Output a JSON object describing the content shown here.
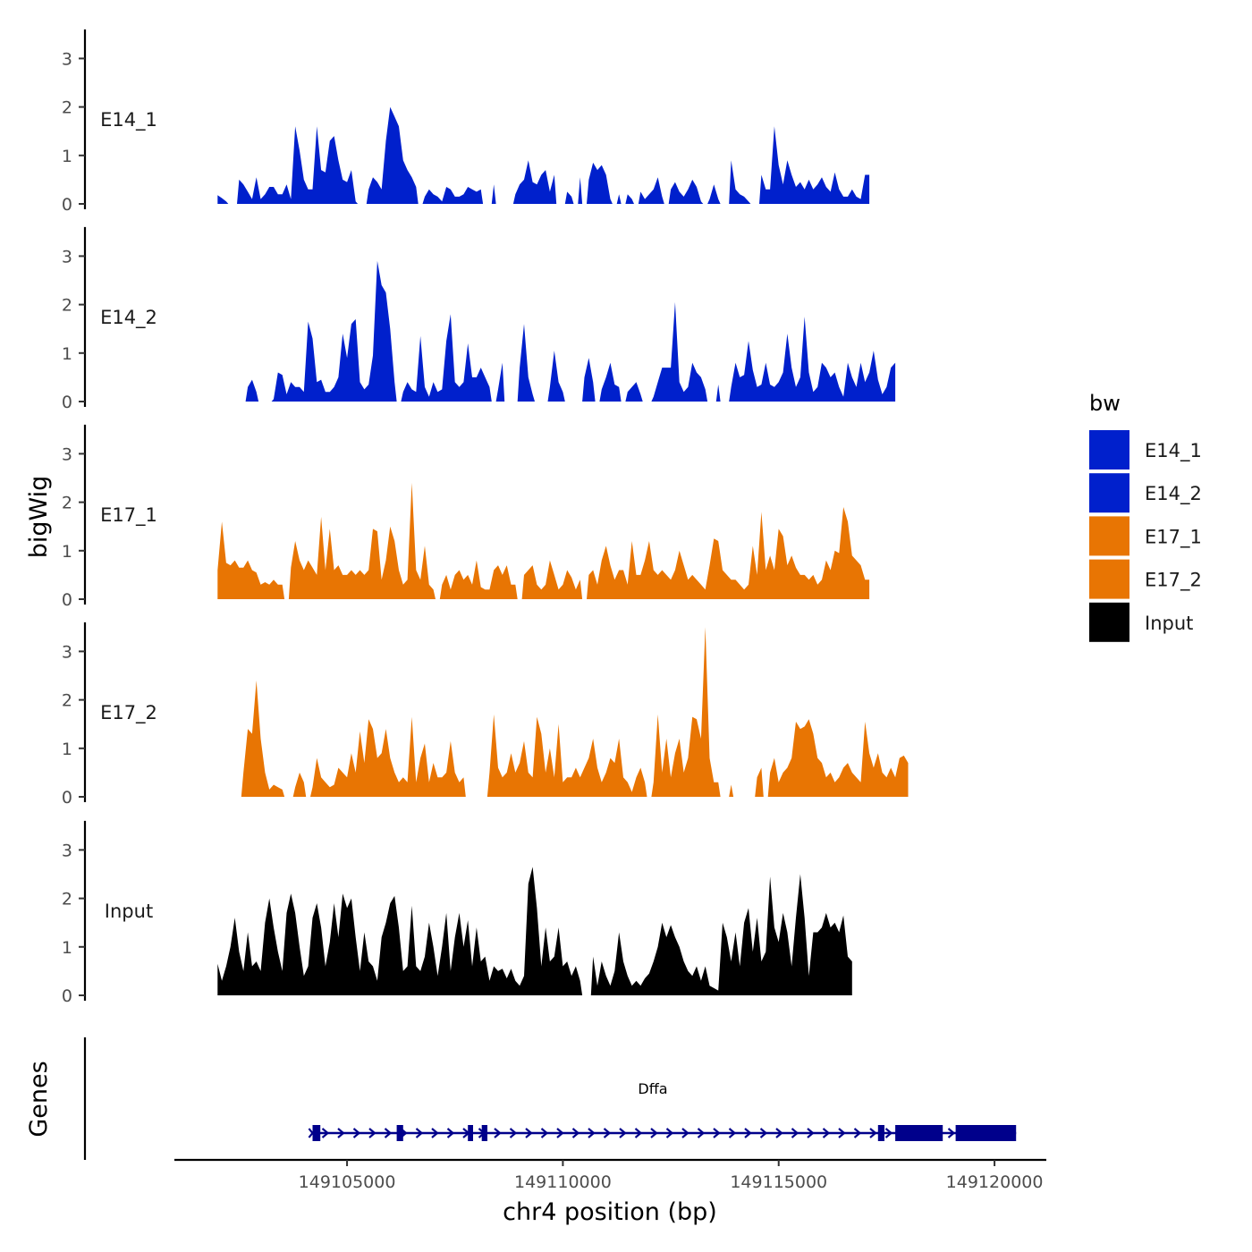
{
  "chart_data": {
    "type": "area",
    "y_title": "bigWig",
    "genes_title": "Genes",
    "x_title": "chr4 position (bp)",
    "xlim": [
      149101000,
      149121200
    ],
    "x_ticks": [
      149105000,
      149110000,
      149115000,
      149120000
    ],
    "x_tick_labels": [
      "149105000",
      "149110000",
      "149115000",
      "149120000"
    ],
    "ylim": [
      0,
      3.6
    ],
    "y_ticks": [
      0,
      1,
      2,
      3
    ],
    "y_tick_labels": [
      "0",
      "1",
      "2",
      "3"
    ],
    "legend": {
      "title": "bw",
      "entries": [
        {
          "name": "E14_1",
          "color": "#0020CC"
        },
        {
          "name": "E14_2",
          "color": "#0020CC"
        },
        {
          "name": "E17_1",
          "color": "#E87503"
        },
        {
          "name": "E17_2",
          "color": "#E87503"
        },
        {
          "name": "Input",
          "color": "#000000"
        }
      ]
    },
    "series": [
      {
        "name": "E14_1",
        "color": "#0020CC",
        "start": 149102000,
        "step": 100,
        "values": [
          0.18,
          0.12,
          0.05,
          0,
          0,
          0.5,
          0.4,
          0.25,
          0.1,
          0.55,
          0.1,
          0.2,
          0.35,
          0.35,
          0.2,
          0.2,
          0.4,
          0.1,
          1.6,
          1.1,
          0.5,
          0.3,
          0.3,
          1.6,
          0.7,
          0.65,
          1.3,
          1.4,
          0.9,
          0.5,
          0.45,
          0.7,
          0.05,
          0,
          0,
          0.3,
          0.55,
          0.45,
          0.3,
          1.3,
          2.0,
          1.8,
          1.6,
          0.9,
          0.7,
          0.55,
          0.35,
          0,
          0.15,
          0.3,
          0.2,
          0.15,
          0.05,
          0.35,
          0.3,
          0.15,
          0.15,
          0.2,
          0.35,
          0.3,
          0.25,
          0.3,
          0,
          0,
          0.4,
          0,
          0,
          0,
          0,
          0.2,
          0.4,
          0.5,
          0.9,
          0.45,
          0.4,
          0.6,
          0.7,
          0.25,
          0.6,
          0,
          0,
          0.25,
          0.15,
          0,
          0.55,
          0,
          0.5,
          0.85,
          0.7,
          0.8,
          0.6,
          0.1,
          0,
          0.2,
          0,
          0.2,
          0.1,
          0,
          0.25,
          0.1,
          0.2,
          0.3,
          0.55,
          0.15,
          0,
          0.3,
          0.45,
          0.25,
          0.15,
          0.3,
          0.5,
          0.35,
          0.05,
          0,
          0.1,
          0.4,
          0.1,
          0,
          0,
          0.9,
          0.3,
          0.2,
          0.15,
          0.05,
          0,
          0,
          0.6,
          0.3,
          0.3,
          1.6,
          0.8,
          0.4,
          0.9,
          0.6,
          0.35,
          0.45,
          0.3,
          0.5,
          0.3,
          0.4,
          0.55,
          0.35,
          0.25,
          0.65,
          0.3,
          0.15,
          0.15,
          0.3,
          0.15,
          0.1,
          0.6,
          0.6
        ]
      },
      {
        "name": "E14_2",
        "color": "#0020CC",
        "start": 149102000,
        "step": 100,
        "values": [
          0,
          0,
          0,
          0,
          0,
          0,
          0,
          0.3,
          0.45,
          0.2,
          0,
          0,
          0,
          0.05,
          0.6,
          0.55,
          0.15,
          0.4,
          0.3,
          0.3,
          0.2,
          1.65,
          1.3,
          0.4,
          0.45,
          0.2,
          0.2,
          0.3,
          0.5,
          1.4,
          0.9,
          1.6,
          1.7,
          0.4,
          0.25,
          0.35,
          0.95,
          2.9,
          2.4,
          2.25,
          1.5,
          0.4,
          0,
          0.2,
          0.4,
          0.25,
          0.2,
          1.35,
          0.3,
          0.1,
          0.4,
          0.2,
          0.25,
          1.25,
          1.8,
          0.4,
          0.3,
          0.4,
          1.2,
          0.5,
          0.5,
          0.7,
          0.5,
          0.3,
          0,
          0.25,
          0.8,
          0,
          0,
          0,
          0.7,
          1.6,
          0.5,
          0.15,
          0,
          0,
          0,
          0.3,
          1.05,
          0.4,
          0.2,
          0,
          0,
          0,
          0,
          0.5,
          0.9,
          0.4,
          0,
          0.25,
          0.5,
          0.8,
          0.35,
          0.3,
          0,
          0.2,
          0.3,
          0.4,
          0.15,
          0,
          0,
          0.1,
          0.4,
          0.7,
          0.7,
          0.7,
          2.05,
          0.4,
          0.2,
          0.3,
          0.8,
          0.6,
          0.5,
          0.25,
          0,
          0,
          0.35,
          0,
          0,
          0.3,
          0.8,
          0.5,
          0.55,
          1.25,
          0.65,
          0.3,
          0.35,
          0.8,
          0.35,
          0.3,
          0.4,
          0.6,
          1.4,
          0.7,
          0.3,
          0.5,
          1.75,
          0.6,
          0.2,
          0.3,
          0.8,
          0.7,
          0.5,
          0.6,
          0.3,
          0.1,
          0.8,
          0.5,
          0.3,
          0.8,
          0.4,
          0.6,
          1.05,
          0.45,
          0.15,
          0.3,
          0.7,
          0.8
        ]
      },
      {
        "name": "E17_1",
        "color": "#E87503",
        "start": 149102000,
        "step": 100,
        "values": [
          0.6,
          1.6,
          0.75,
          0.7,
          0.8,
          0.65,
          0.65,
          0.8,
          0.6,
          0.55,
          0.3,
          0.35,
          0.3,
          0.4,
          0.3,
          0.3,
          0,
          0.65,
          1.2,
          0.8,
          0.6,
          0.8,
          0.65,
          0.5,
          1.7,
          0.6,
          1.45,
          0.6,
          0.7,
          0.5,
          0.5,
          0.6,
          0.5,
          0.6,
          0.5,
          0.6,
          1.45,
          1.4,
          0.4,
          0.8,
          1.5,
          1.2,
          0.6,
          0.3,
          0.4,
          2.4,
          0.6,
          0.4,
          1.1,
          0.3,
          0.2,
          0,
          0.3,
          0.5,
          0.2,
          0.5,
          0.6,
          0.4,
          0.5,
          0.3,
          0.8,
          0.25,
          0.2,
          0.2,
          0.6,
          0.7,
          0.5,
          0.7,
          0.3,
          0.3,
          0,
          0.5,
          0.6,
          0.7,
          0.3,
          0.2,
          0.3,
          0.8,
          0.5,
          0.2,
          0.3,
          0.6,
          0.45,
          0.2,
          0.4,
          0,
          0.5,
          0.6,
          0.3,
          0.8,
          1.1,
          0.7,
          0.4,
          0.6,
          0.6,
          0.3,
          1.2,
          0.5,
          0.5,
          0.8,
          1.2,
          0.6,
          0.5,
          0.6,
          0.5,
          0.4,
          0.6,
          1.0,
          0.7,
          0.4,
          0.5,
          0.4,
          0.3,
          0.2,
          0.7,
          1.25,
          1.2,
          0.6,
          0.5,
          0.4,
          0.4,
          0.3,
          0.2,
          0.3,
          1.1,
          0.5,
          1.8,
          0.6,
          0.9,
          0.6,
          1.45,
          1.3,
          0.7,
          0.9,
          0.65,
          0.5,
          0.5,
          0.4,
          0.5,
          0.3,
          0.4,
          0.8,
          0.6,
          1.0,
          0.95,
          1.9,
          1.6,
          0.9,
          0.8,
          0.7,
          0.4,
          0.4
        ]
      },
      {
        "name": "E17_2",
        "color": "#E87503",
        "start": 149102000,
        "step": 100,
        "values": [
          0,
          0,
          0,
          0,
          0,
          0,
          0.5,
          1.4,
          1.3,
          2.4,
          1.2,
          0.5,
          0.15,
          0.25,
          0.2,
          0.15,
          0,
          0,
          0.2,
          0.5,
          0.3,
          0,
          0.2,
          0.8,
          0.4,
          0.3,
          0.2,
          0.25,
          0.6,
          0.5,
          0.4,
          0.9,
          0.5,
          1.35,
          0.7,
          1.6,
          1.4,
          0.8,
          0.9,
          1.4,
          0.8,
          0.5,
          0.3,
          0.4,
          0.3,
          1.65,
          0.3,
          0.8,
          1.1,
          0.3,
          0.7,
          0.4,
          0.4,
          0.5,
          1.15,
          0.5,
          0.3,
          0.4,
          0,
          0,
          0,
          0,
          0,
          0.5,
          1.7,
          0.6,
          0.4,
          0.5,
          0.9,
          0.5,
          0.7,
          1.15,
          0.5,
          0.4,
          1.65,
          1.3,
          0.5,
          1.0,
          0.4,
          1.5,
          0.3,
          0.4,
          0.4,
          0.6,
          0.4,
          0.6,
          0.8,
          1.2,
          0.6,
          0.3,
          0.5,
          0.8,
          0.7,
          1.2,
          0.4,
          0.3,
          0.1,
          0.4,
          0.6,
          0.3,
          0,
          0.3,
          1.7,
          0.5,
          1.2,
          0.4,
          0.9,
          1.2,
          0.5,
          0.8,
          1.65,
          1.6,
          1.2,
          3.5,
          0.8,
          0.3,
          0.3,
          0,
          0,
          0.25,
          0,
          0,
          0,
          0,
          0,
          0.4,
          0.6,
          0,
          0.5,
          0.8,
          0.3,
          0.5,
          0.6,
          0.8,
          1.55,
          1.4,
          1.45,
          1.6,
          1.3,
          0.8,
          0.7,
          0.4,
          0.5,
          0.3,
          0.4,
          0.6,
          0.7,
          0.5,
          0.4,
          0.3,
          1.55,
          0.9,
          0.6,
          0.9,
          0.5,
          0.4,
          0.6,
          0.4,
          0.8,
          0.85,
          0.7
        ]
      },
      {
        "name": "Input",
        "color": "#000000",
        "start": 149102000,
        "step": 100,
        "values": [
          0.65,
          0.3,
          0.6,
          1.0,
          1.6,
          0.9,
          0.5,
          1.3,
          0.6,
          0.7,
          0.5,
          1.5,
          2.0,
          1.4,
          0.9,
          0.5,
          1.7,
          2.1,
          1.7,
          1.0,
          0.4,
          0.6,
          1.6,
          1.9,
          1.4,
          0.6,
          1.1,
          1.9,
          1.2,
          2.1,
          1.8,
          2.0,
          1.2,
          0.5,
          1.3,
          0.7,
          0.6,
          0.3,
          1.2,
          1.5,
          1.9,
          2.05,
          1.4,
          0.5,
          0.6,
          1.85,
          0.6,
          0.5,
          0.8,
          1.5,
          1.0,
          0.4,
          1.0,
          1.7,
          0.5,
          1.2,
          1.7,
          1.0,
          1.55,
          0.6,
          1.4,
          0.7,
          0.8,
          0.3,
          0.6,
          0.5,
          0.55,
          0.35,
          0.55,
          0.3,
          0.2,
          0.4,
          2.3,
          2.65,
          1.8,
          0.6,
          1.4,
          0.7,
          0.8,
          1.4,
          0.6,
          0.7,
          0.4,
          0.6,
          0.3,
          0,
          0,
          0.8,
          0.2,
          0.7,
          0.4,
          0.2,
          0.5,
          1.3,
          0.7,
          0.4,
          0.2,
          0.3,
          0.2,
          0.35,
          0.45,
          0.7,
          1.0,
          1.5,
          1.2,
          1.45,
          1.2,
          1.0,
          0.7,
          0.5,
          0.4,
          0.6,
          0.3,
          0.6,
          0.2,
          0.15,
          0.1,
          1.5,
          1.2,
          0.7,
          1.3,
          0.6,
          1.5,
          1.8,
          0.9,
          1.6,
          0.7,
          0.9,
          2.45,
          1.4,
          1.1,
          1.7,
          1.3,
          0.6,
          1.6,
          2.5,
          1.6,
          0.4,
          1.3,
          1.3,
          1.4,
          1.7,
          1.4,
          1.5,
          1.3,
          1.65,
          0.8,
          0.7
        ]
      }
    ],
    "gene": {
      "name": "Dffa",
      "start": 149104200,
      "end": 149120500,
      "color": "#00008B",
      "exons": [
        [
          149104200,
          149104380
        ],
        [
          149106150,
          149106300
        ],
        [
          149107800,
          149107920
        ],
        [
          149108120,
          149108250
        ],
        [
          149117300,
          149117450
        ],
        [
          149117700,
          149118800
        ],
        [
          149119100,
          149120500
        ]
      ]
    }
  }
}
